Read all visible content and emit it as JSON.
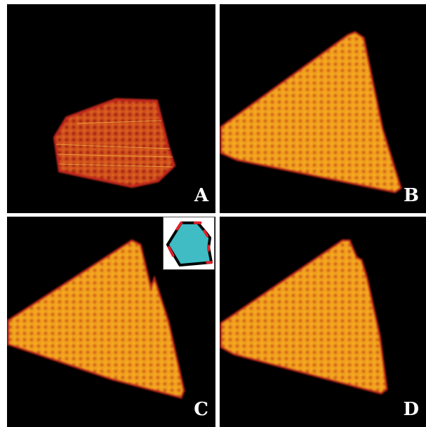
{
  "panels": [
    {
      "id": "A",
      "label": "A"
    },
    {
      "id": "B",
      "label": "B"
    },
    {
      "id": "C",
      "label": "C"
    },
    {
      "id": "D",
      "label": "D"
    }
  ],
  "colors": {
    "background": "#000000",
    "crystal_fill": "#f2a21c",
    "crystal_edge": "#c0261a",
    "inset_fill": "#3fbcc4",
    "inset_outline": "#000000",
    "inset_vertices": "#e0202a",
    "label": "#ffffff"
  },
  "inset": {
    "icon": "hexagonal-crystal-schematic-icon"
  }
}
